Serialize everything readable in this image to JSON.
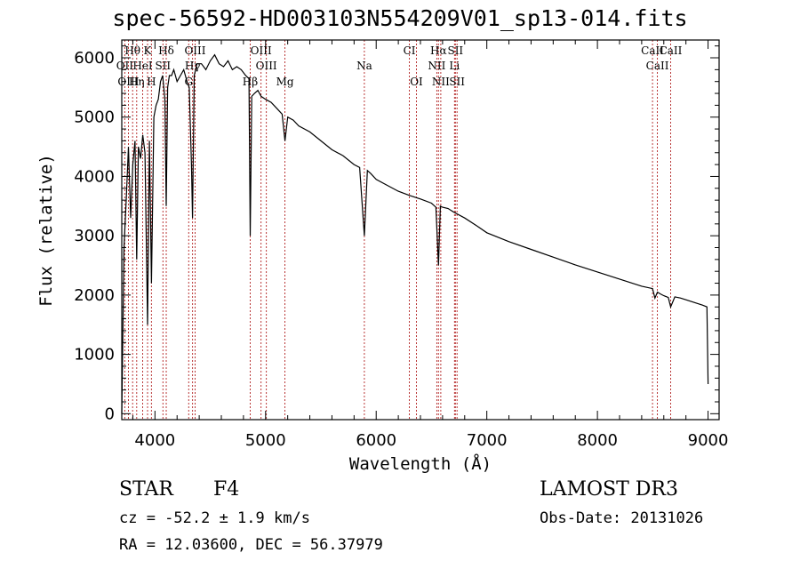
{
  "chart_data": {
    "type": "line",
    "title": "spec-56592-HD003103N554209V01_sp13-014.fits",
    "xlabel": "Wavelength (Å)",
    "ylabel": "Flux (relative)",
    "xlim": [
      3700,
      9100
    ],
    "ylim": [
      -100,
      6300
    ],
    "xticks": [
      4000,
      5000,
      6000,
      7000,
      8000,
      9000
    ],
    "yticks": [
      0,
      1000,
      2000,
      3000,
      4000,
      5000,
      6000
    ],
    "series": [
      {
        "name": "flux",
        "x": [
          3700,
          3720,
          3740,
          3760,
          3780,
          3800,
          3820,
          3835,
          3850,
          3870,
          3890,
          3910,
          3933,
          3950,
          3968,
          3990,
          4010,
          4030,
          4050,
          4070,
          4090,
          4102,
          4115,
          4130,
          4150,
          4170,
          4200,
          4230,
          4260,
          4290,
          4310,
          4330,
          4340,
          4355,
          4380,
          4420,
          4460,
          4500,
          4540,
          4580,
          4620,
          4660,
          4700,
          4740,
          4780,
          4820,
          4850,
          4861,
          4875,
          4900,
          4930,
          4960,
          5000,
          5050,
          5100,
          5150,
          5175,
          5200,
          5250,
          5300,
          5400,
          5500,
          5600,
          5700,
          5800,
          5850,
          5893,
          5920,
          5950,
          6000,
          6100,
          6200,
          6300,
          6400,
          6500,
          6540,
          6563,
          6580,
          6600,
          6650,
          6700,
          6800,
          6900,
          7000,
          7200,
          7400,
          7600,
          7800,
          8000,
          8200,
          8400,
          8498,
          8520,
          8542,
          8570,
          8600,
          8640,
          8662,
          8700,
          8750,
          8800,
          8850,
          8900,
          8950,
          8990,
          9000
        ],
        "y": [
          0,
          2800,
          3600,
          4500,
          3300,
          4200,
          4600,
          2600,
          4500,
          4300,
          4700,
          4400,
          1500,
          4600,
          2200,
          5000,
          5200,
          5300,
          5600,
          5700,
          5300,
          3500,
          5500,
          5700,
          5700,
          5800,
          5600,
          5700,
          5800,
          5600,
          5500,
          4200,
          3300,
          5700,
          5900,
          5900,
          5800,
          5950,
          6050,
          5900,
          5850,
          5950,
          5800,
          5850,
          5800,
          5700,
          5650,
          3000,
          5350,
          5400,
          5450,
          5350,
          5300,
          5250,
          5150,
          5050,
          4600,
          5000,
          4950,
          4850,
          4750,
          4600,
          4450,
          4350,
          4200,
          4150,
          3000,
          4100,
          4050,
          3950,
          3850,
          3750,
          3680,
          3620,
          3550,
          3480,
          2500,
          3500,
          3480,
          3460,
          3400,
          3300,
          3180,
          3050,
          2900,
          2770,
          2640,
          2510,
          2390,
          2270,
          2150,
          2110,
          1950,
          2050,
          2020,
          1990,
          1960,
          1800,
          1970,
          1950,
          1920,
          1890,
          1860,
          1830,
          1800,
          500
        ]
      }
    ],
    "spectral_lines": [
      {
        "label": "Hθ",
        "wavelength": 3798
      },
      {
        "label": "K",
        "wavelength": 3933
      },
      {
        "label": "Hδ",
        "wavelength": 4102
      },
      {
        "label": "OIII",
        "wavelength": 4363
      },
      {
        "label": "OIII",
        "wavelength": 4959
      },
      {
        "label": "CI",
        "wavelength": 6300
      },
      {
        "label": "Hα",
        "wavelength": 6563
      },
      {
        "label": "SII",
        "wavelength": 6716
      },
      {
        "label": "CaII",
        "wavelength": 8662
      },
      {
        "label": "OII",
        "wavelength": 3727
      },
      {
        "label": "HeI",
        "wavelength": 3889
      },
      {
        "label": "SII",
        "wavelength": 4072
      },
      {
        "label": "Hγ",
        "wavelength": 4340
      },
      {
        "label": "OIII",
        "wavelength": 5007
      },
      {
        "label": "Na",
        "wavelength": 5893
      },
      {
        "label": "NII",
        "wavelength": 6548
      },
      {
        "label": "Li",
        "wavelength": 6708
      },
      {
        "label": "CaII",
        "wavelength": 8542
      },
      {
        "label": "OIII",
        "wavelength": 3760
      },
      {
        "label": "Hη",
        "wavelength": 3835
      },
      {
        "label": "H",
        "wavelength": 3968
      },
      {
        "label": "G",
        "wavelength": 4305
      },
      {
        "label": "Hβ",
        "wavelength": 4861
      },
      {
        "label": "Mg",
        "wavelength": 5175
      },
      {
        "label": "OI",
        "wavelength": 6364
      },
      {
        "label": "NII",
        "wavelength": 6584
      },
      {
        "label": "SII",
        "wavelength": 6731
      },
      {
        "label": "CaII",
        "wavelength": 8498
      }
    ]
  },
  "info": {
    "object_class": "STAR",
    "subclass": "F4",
    "survey": "LAMOST DR3",
    "cz": "cz = -52.2 ± 1.9 km/s",
    "obs_date": "Obs-Date: 20131026",
    "coords": "RA =  12.03600, DEC =  56.37979"
  }
}
